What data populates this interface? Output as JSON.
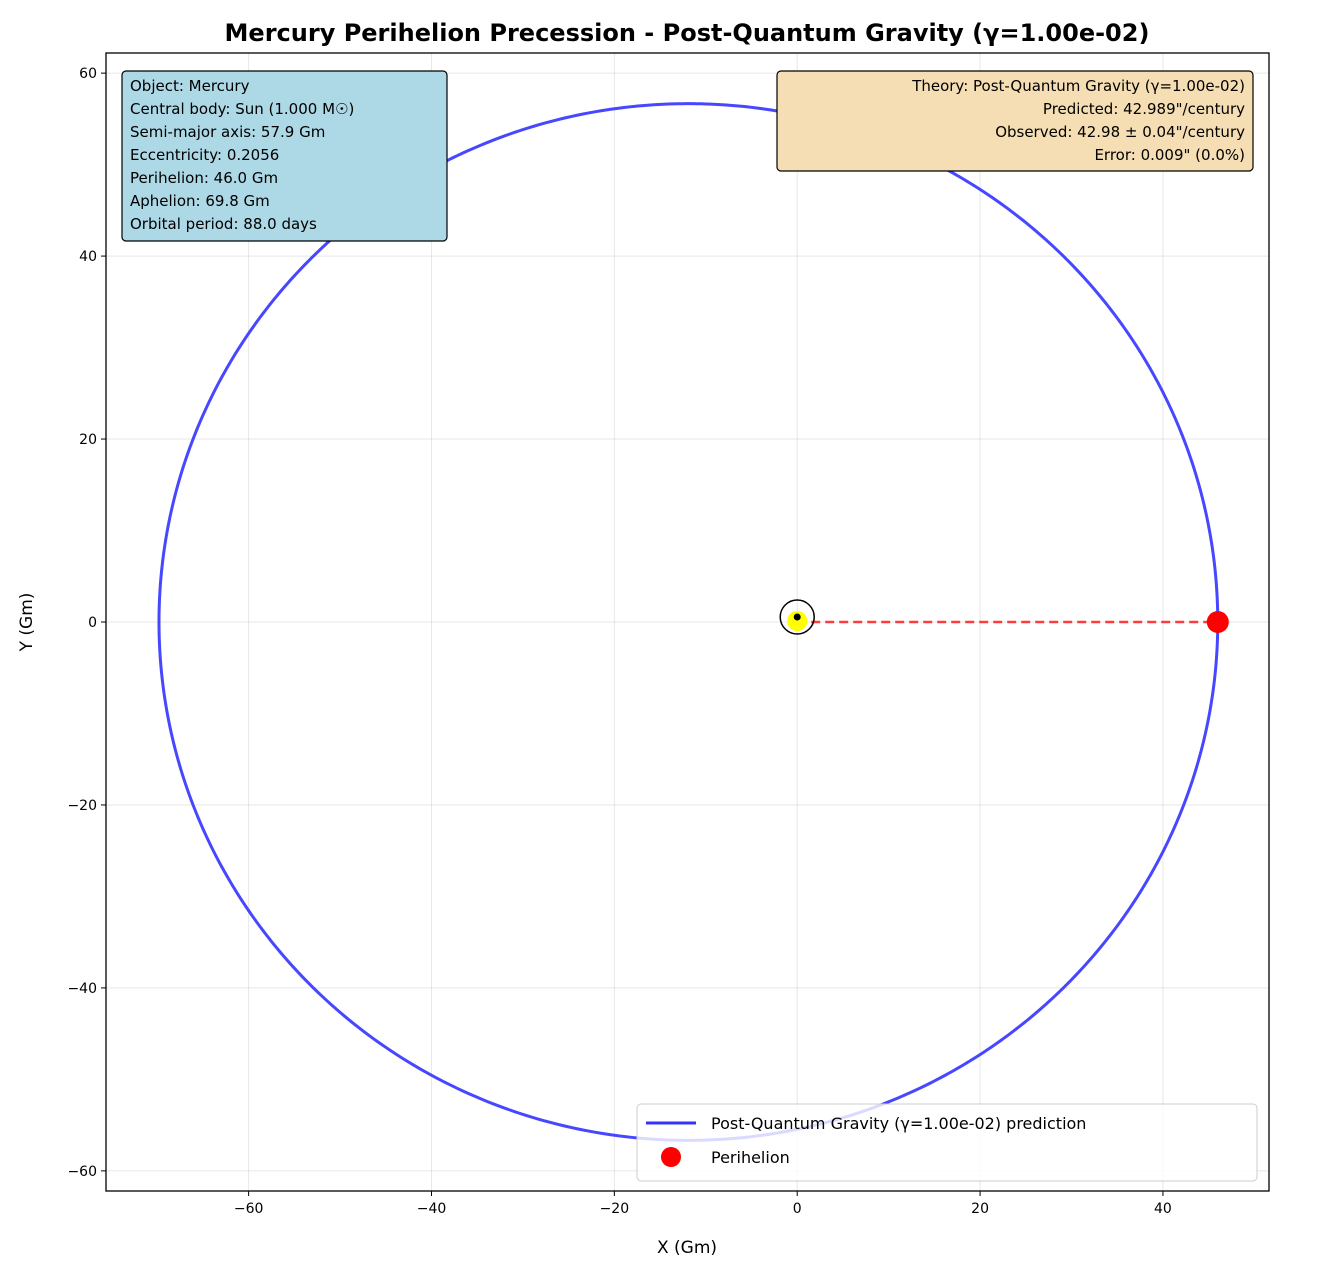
{
  "chart_data": {
    "type": "scatter",
    "title": "Mercury Perihelion Precession - Post-Quantum Gravity (γ=1.00e-02)",
    "xlabel": "X (Gm)",
    "ylabel": "Y (Gm)",
    "xlim": [
      -75.6,
      51.6
    ],
    "ylim": [
      -62.2,
      62.2
    ],
    "xticks": [
      -60,
      -40,
      -20,
      0,
      20,
      40
    ],
    "yticks": [
      -60,
      -40,
      -20,
      0,
      20,
      40,
      60
    ],
    "xtick_labels": [
      "−60",
      "−40",
      "−20",
      "0",
      "20",
      "40"
    ],
    "ytick_labels": [
      "−60",
      "−40",
      "−20",
      "0",
      "20",
      "40",
      "60"
    ],
    "grid": true,
    "legend_position": "lower-right",
    "orbit": {
      "name": "Post-Quantum Gravity (γ=1.00e-02) prediction",
      "semi_major_axis": 57.9,
      "eccentricity": 0.2056,
      "color": "#3333ff"
    },
    "central_body": {
      "x": 0,
      "y": 0,
      "color": "#ffff00"
    },
    "perihelion": {
      "name": "Perihelion",
      "x": 46.0,
      "y": 0,
      "color": "#ff0000"
    },
    "perihelion_line": {
      "from": [
        0,
        0
      ],
      "to": [
        46.0,
        0
      ],
      "color": "#ff0000"
    },
    "info_box": {
      "lines": [
        "Object: Mercury",
        "Central body: Sun (1.000 M☉)",
        "Semi-major axis: 57.9 Gm",
        "Eccentricity: 0.2056",
        "Perihelion: 46.0 Gm",
        "Aphelion: 69.8 Gm",
        "Orbital period: 88.0 days"
      ],
      "background": "#add8e6"
    },
    "theory_box": {
      "lines": [
        "Theory: Post-Quantum Gravity (γ=1.00e-02)",
        "Predicted: 42.989\"/century",
        "Observed: 42.98 ± 0.04\"/century",
        "Error: 0.009\" (0.0%)"
      ],
      "background": "#f5deb3"
    },
    "legend": [
      {
        "label": "Post-Quantum Gravity (γ=1.00e-02) prediction",
        "kind": "line",
        "color": "#3333ff"
      },
      {
        "label": "Perihelion",
        "kind": "marker",
        "color": "#ff0000"
      }
    ]
  }
}
